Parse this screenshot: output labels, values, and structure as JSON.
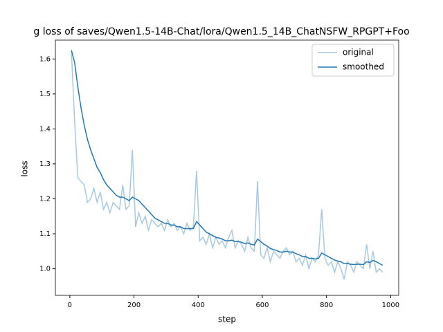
{
  "chart_data": {
    "type": "line",
    "title": "g loss of saves/Qwen1.5-14B-Chat/lora/Qwen1.5_14B_ChatNSFW_RPGPT+Foo",
    "x_label": "step",
    "y_label": "loss",
    "x": [
      5,
      15,
      25,
      35,
      45,
      55,
      65,
      75,
      85,
      95,
      105,
      115,
      125,
      135,
      145,
      155,
      165,
      175,
      185,
      195,
      205,
      215,
      225,
      235,
      245,
      255,
      265,
      275,
      285,
      295,
      305,
      315,
      325,
      335,
      345,
      355,
      365,
      375,
      385,
      395,
      405,
      415,
      425,
      435,
      445,
      455,
      465,
      475,
      485,
      495,
      505,
      515,
      525,
      535,
      545,
      555,
      565,
      575,
      585,
      595,
      605,
      615,
      625,
      635,
      645,
      655,
      665,
      675,
      685,
      695,
      705,
      715,
      725,
      735,
      745,
      755,
      765,
      775,
      785,
      795,
      805,
      815,
      825,
      835,
      845,
      855,
      865,
      875,
      885,
      895,
      905,
      915,
      925,
      935,
      945,
      955,
      965,
      975
    ],
    "series": [
      {
        "name": "original",
        "color": "#a6c8e0",
        "values": [
          1.62,
          1.42,
          1.26,
          1.25,
          1.24,
          1.19,
          1.2,
          1.23,
          1.19,
          1.22,
          1.17,
          1.19,
          1.16,
          1.19,
          1.18,
          1.17,
          1.24,
          1.17,
          1.18,
          1.34,
          1.12,
          1.16,
          1.13,
          1.15,
          1.11,
          1.14,
          1.13,
          1.12,
          1.13,
          1.11,
          1.14,
          1.12,
          1.13,
          1.11,
          1.12,
          1.1,
          1.13,
          1.11,
          1.12,
          1.28,
          1.08,
          1.09,
          1.07,
          1.1,
          1.06,
          1.09,
          1.07,
          1.08,
          1.06,
          1.09,
          1.11,
          1.06,
          1.08,
          1.07,
          1.05,
          1.09,
          1.06,
          1.05,
          1.25,
          1.04,
          1.03,
          1.06,
          1.02,
          1.05,
          1.04,
          1.03,
          1.05,
          1.06,
          1.04,
          1.05,
          1.02,
          1.03,
          1.01,
          1.04,
          1.0,
          1.03,
          1.02,
          1.04,
          1.17,
          1.03,
          1.01,
          1.02,
          0.99,
          1.02,
          1.0,
          0.97,
          1.02,
          1.01,
          0.99,
          1.02,
          1.01,
          1.0,
          1.07,
          1.0,
          1.05,
          0.99,
          1.0,
          0.99
        ]
      },
      {
        "name": "smoothed",
        "color": "#1f77b4",
        "values": [
          1.625,
          1.59,
          1.52,
          1.46,
          1.41,
          1.37,
          1.34,
          1.315,
          1.29,
          1.275,
          1.255,
          1.24,
          1.23,
          1.22,
          1.21,
          1.205,
          1.205,
          1.2,
          1.195,
          1.205,
          1.2,
          1.195,
          1.185,
          1.175,
          1.165,
          1.155,
          1.145,
          1.14,
          1.135,
          1.13,
          1.13,
          1.125,
          1.125,
          1.12,
          1.12,
          1.115,
          1.115,
          1.115,
          1.115,
          1.135,
          1.125,
          1.115,
          1.105,
          1.1,
          1.095,
          1.09,
          1.088,
          1.085,
          1.08,
          1.08,
          1.082,
          1.078,
          1.078,
          1.076,
          1.072,
          1.074,
          1.07,
          1.068,
          1.085,
          1.078,
          1.07,
          1.065,
          1.058,
          1.055,
          1.052,
          1.048,
          1.048,
          1.05,
          1.048,
          1.048,
          1.043,
          1.04,
          1.035,
          1.035,
          1.03,
          1.03,
          1.028,
          1.03,
          1.045,
          1.04,
          1.035,
          1.03,
          1.025,
          1.022,
          1.02,
          1.015,
          1.015,
          1.013,
          1.012,
          1.013,
          1.013,
          1.012,
          1.02,
          1.018,
          1.024,
          1.02,
          1.015,
          1.01
        ]
      }
    ],
    "xlim": [
      -45,
      1025
    ],
    "xticks": [
      0,
      200,
      400,
      600,
      800,
      1000
    ],
    "ylim": [
      0.924,
      1.654
    ],
    "yticks": [
      {
        "value": 1,
        "label": "1.0"
      },
      1.1,
      1.2,
      1.3,
      1.4,
      1.5,
      1.6
    ],
    "legend": "upper right"
  }
}
